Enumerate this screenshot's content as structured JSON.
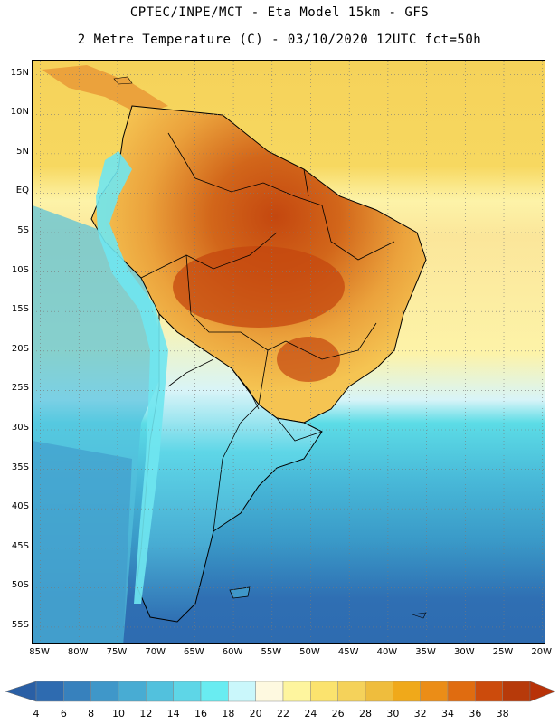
{
  "header": {
    "line1": "CPTEC/INPE/MCT -  Eta Model 15km - GFS",
    "line2": "2 Metre Temperature (C) - 03/10/2020 12UTC fct=50h"
  },
  "map": {
    "latitude_labels": [
      "15N",
      "10N",
      "5N",
      "EQ",
      "5S",
      "10S",
      "15S",
      "20S",
      "25S",
      "30S",
      "35S",
      "40S",
      "45S",
      "50S",
      "55S"
    ],
    "longitude_labels": [
      "85W",
      "80W",
      "75W",
      "70W",
      "65W",
      "60W",
      "55W",
      "50W",
      "45W",
      "40W",
      "35W",
      "30W",
      "25W",
      "20W"
    ],
    "colors": {
      "ocean_warm": "#f5d25a",
      "ocean_mid": "#fdf3a8",
      "ocean_cool": "#5cdce6",
      "ocean_cold": "#3a9ac8",
      "ocean_deep": "#2f6fb3",
      "land_hot": "#d2661a",
      "land_warm": "#eba23c",
      "land_core": "#c4470f",
      "andes": "#6fe5f0",
      "coast_line": "#000000"
    }
  },
  "colorbar": {
    "ticks": [
      "4",
      "6",
      "8",
      "10",
      "12",
      "14",
      "16",
      "18",
      "20",
      "22",
      "24",
      "26",
      "28",
      "30",
      "32",
      "34",
      "36",
      "38"
    ],
    "colors": [
      "#2e6bb0",
      "#3781bd",
      "#3f97c9",
      "#48acd3",
      "#52c1dd",
      "#5ed6e7",
      "#69ecf1",
      "#caf7fb",
      "#fef9e0",
      "#fef59e",
      "#fbe36e",
      "#f5d25a",
      "#efbd3d",
      "#f0a91a",
      "#eb8d17",
      "#e06c10",
      "#cc4b0c",
      "#b73a0a"
    ],
    "left_extend_color": "#2a5fa5",
    "right_extend_color": "#b83208"
  }
}
